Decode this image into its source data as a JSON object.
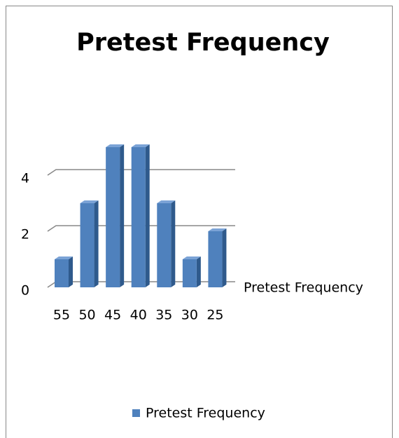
{
  "chart_data": {
    "type": "bar3d",
    "title": "Pretest Frequency",
    "categories": [
      "55",
      "50",
      "45",
      "40",
      "35",
      "30",
      "25"
    ],
    "series": [
      {
        "name": "Pretest Frequency",
        "color": "#4f81bd",
        "values": [
          1,
          3,
          5,
          5,
          3,
          1,
          2
        ]
      }
    ],
    "ylim": [
      0,
      5
    ],
    "yticks": [
      0,
      2,
      4
    ],
    "grid": true,
    "legend": "bottom"
  }
}
